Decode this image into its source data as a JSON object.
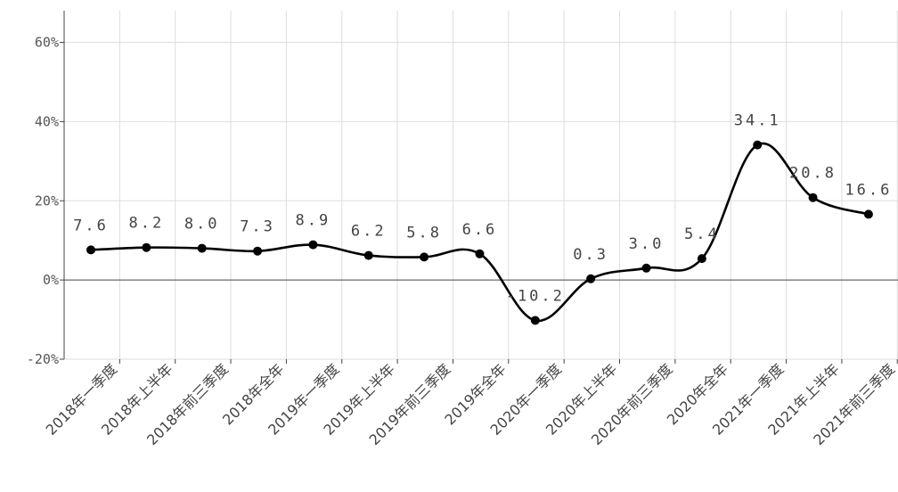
{
  "chart_data": {
    "type": "line",
    "categories": [
      "2018年一季度",
      "2018年上半年",
      "2018年前三季度",
      "2018年全年",
      "2019年一季度",
      "2019年上半年",
      "2019年前三季度",
      "2019年全年",
      "2020年一季度",
      "2020年上半年",
      "2020年前三季度",
      "2020年全年",
      "2021年一季度",
      "2021年上半年",
      "2021年前三季度"
    ],
    "series": [
      {
        "values": [
          7.6,
          8.2,
          8.0,
          7.3,
          8.9,
          6.2,
          5.8,
          6.6,
          -10.2,
          0.3,
          3.0,
          5.4,
          34.1,
          20.8,
          16.6
        ],
        "labels": [
          "7.6",
          "8.2",
          "8.0",
          "7.3",
          "8.9",
          "6.2",
          "5.8",
          "6.6",
          "-10.2",
          "0.3",
          "3.0",
          "5.4",
          "34.1",
          "20.8",
          "16.6"
        ]
      }
    ],
    "y_ticks": [
      "-20%",
      "0%",
      "20%",
      "40%",
      "60%"
    ],
    "ylim": [
      -20,
      68
    ],
    "grid": true,
    "line_color": "#000000",
    "grid_color": "#dddddd"
  }
}
